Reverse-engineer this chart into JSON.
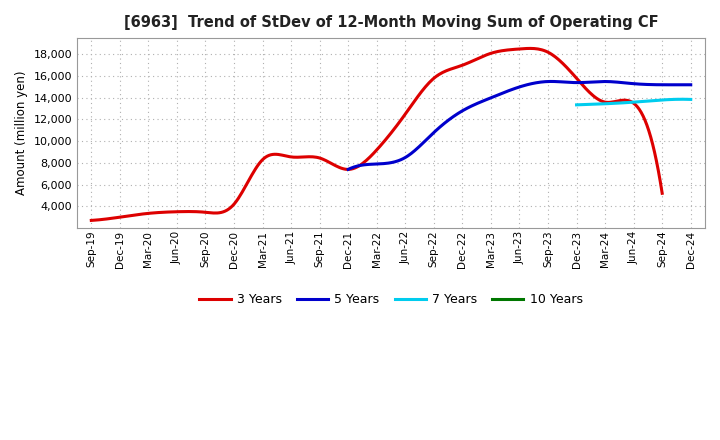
{
  "title": "[6963]  Trend of StDev of 12-Month Moving Sum of Operating CF",
  "ylabel": "Amount (million yen)",
  "background_color": "#ffffff",
  "grid_color": "#b0b0b0",
  "x_labels": [
    "Sep-19",
    "Dec-19",
    "Mar-20",
    "Jun-20",
    "Sep-20",
    "Dec-20",
    "Mar-21",
    "Jun-21",
    "Sep-21",
    "Dec-21",
    "Mar-22",
    "Jun-22",
    "Sep-22",
    "Dec-22",
    "Mar-23",
    "Jun-23",
    "Sep-23",
    "Dec-23",
    "Mar-24",
    "Jun-24",
    "Sep-24",
    "Dec-24"
  ],
  "series": {
    "3 Years": {
      "color": "#dd0000",
      "data_x": [
        0,
        1,
        2,
        3,
        4,
        5,
        6,
        7,
        8,
        9,
        10,
        11,
        12,
        13,
        14,
        15,
        16,
        17,
        18,
        19,
        20
      ],
      "data_y": [
        2700,
        3000,
        3350,
        3500,
        3450,
        4200,
        8300,
        8550,
        8450,
        7400,
        9200,
        12500,
        15800,
        17000,
        18100,
        18500,
        18200,
        15800,
        13600,
        13500,
        5200
      ]
    },
    "5 Years": {
      "color": "#0000cc",
      "data_x": [
        9,
        10,
        11,
        12,
        13,
        14,
        15,
        16,
        17,
        18,
        19,
        20,
        21
      ],
      "data_y": [
        7400,
        7900,
        8500,
        10800,
        12800,
        14000,
        15000,
        15500,
        15400,
        15500,
        15300,
        15200,
        15200
      ]
    },
    "7 Years": {
      "color": "#00ccee",
      "data_x": [
        17,
        18,
        19,
        20,
        21
      ],
      "data_y": [
        13350,
        13450,
        13600,
        13800,
        13850
      ]
    },
    "10 Years": {
      "color": "#007700",
      "data_x": [],
      "data_y": []
    }
  },
  "ylim": [
    2000,
    19500
  ],
  "yticks": [
    4000,
    6000,
    8000,
    10000,
    12000,
    14000,
    16000,
    18000
  ],
  "legend_labels": [
    "3 Years",
    "5 Years",
    "7 Years",
    "10 Years"
  ],
  "legend_colors": [
    "#dd0000",
    "#0000cc",
    "#00ccee",
    "#007700"
  ]
}
